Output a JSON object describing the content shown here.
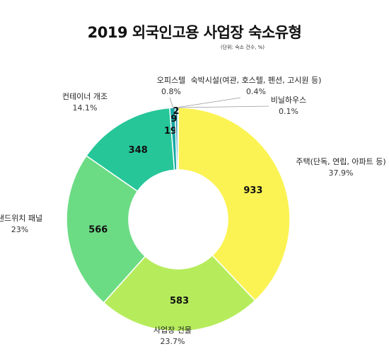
{
  "title": "2019 외국인고용 사업장 숙소유형",
  "unit_note": "(단위: 숙소 건수, %)",
  "chart_data": {
    "type": "pie",
    "donut": true,
    "title": "2019 외국인고용 사업장 숙소유형",
    "unit": "(단위: 숙소 건수, %)",
    "slices": [
      {
        "label": "주택(단독, 연립, 아파트 등)",
        "value": 933,
        "percent": "37.9%",
        "color": "#fbf353"
      },
      {
        "label": "사업장 건물",
        "value": 583,
        "percent": "23.7%",
        "color": "#b6ec5c"
      },
      {
        "label": "샌드위치 패널",
        "value": 566,
        "percent": "23%",
        "color": "#6cdc84"
      },
      {
        "label": "컨테이너 개조",
        "value": 348,
        "percent": "14.1%",
        "color": "#26c699"
      },
      {
        "label": "오피스텔",
        "value": 19,
        "percent": "0.8%",
        "color": "#1aa9a5"
      },
      {
        "label": "숙박시설(여관, 호스텔, 펜션, 고시원 등)",
        "value": 9,
        "percent": "0.4%",
        "color": "#1d8ea7"
      },
      {
        "label": "비닐하우스",
        "value": 2,
        "percent": "0.1%",
        "color": "#23729f"
      }
    ]
  }
}
